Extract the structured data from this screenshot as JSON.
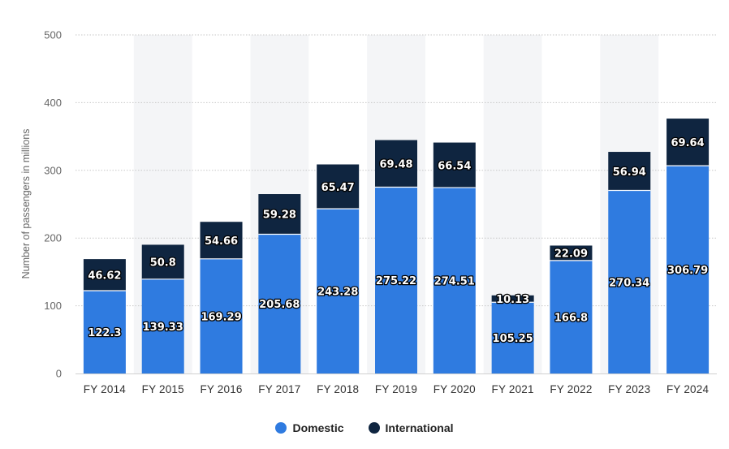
{
  "chart_data": {
    "type": "bar",
    "stacked": true,
    "title": "",
    "xlabel": "",
    "ylabel": "Number of passengers in millions",
    "ylim": [
      0,
      500
    ],
    "yticks": [
      0,
      100,
      200,
      300,
      400,
      500
    ],
    "grid": true,
    "legend_position": "bottom-center",
    "categories": [
      "FY 2014",
      "FY 2015",
      "FY 2016",
      "FY 2017",
      "FY 2018",
      "FY 2019",
      "FY 2020",
      "FY 2021",
      "FY 2022",
      "FY 2023",
      "FY 2024"
    ],
    "series": [
      {
        "name": "Domestic",
        "color": "#2f7be0",
        "values": [
          122.3,
          139.33,
          169.29,
          205.68,
          243.28,
          275.22,
          274.51,
          105.25,
          166.8,
          270.34,
          306.79
        ]
      },
      {
        "name": "International",
        "color": "#0f2540",
        "values": [
          46.62,
          50.8,
          54.66,
          59.28,
          65.47,
          69.48,
          66.54,
          10.13,
          22.09,
          56.94,
          69.64
        ]
      }
    ]
  }
}
